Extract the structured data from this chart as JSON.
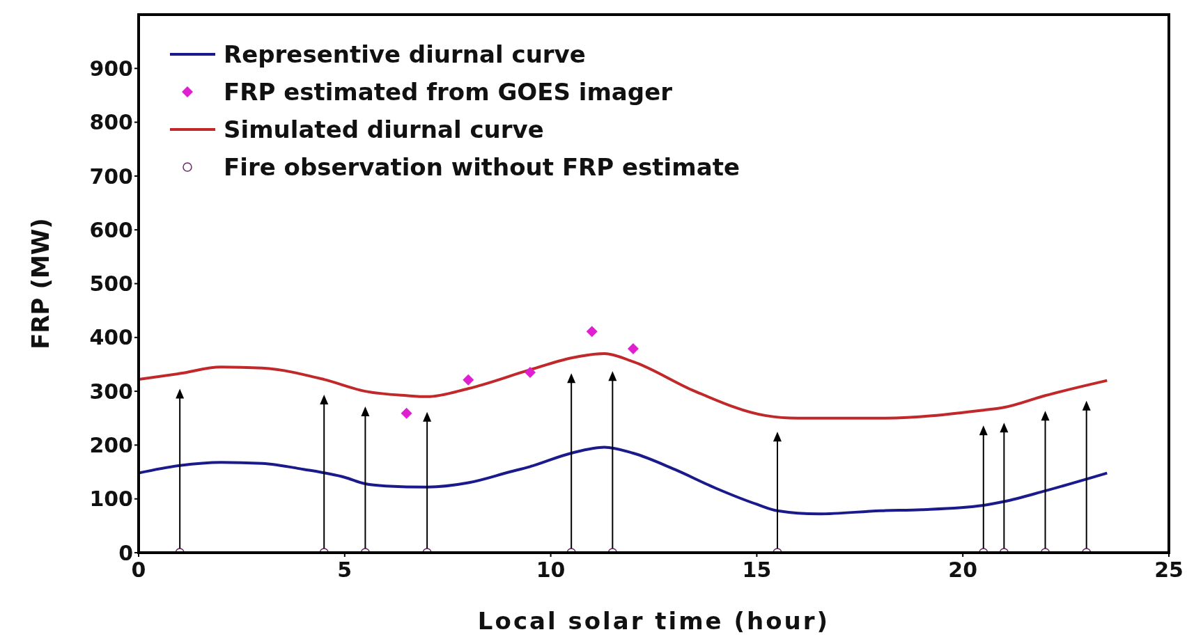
{
  "chart_data": {
    "type": "line",
    "xlabel": "Local solar time (hour)",
    "ylabel": "FRP (MW)",
    "xlim": [
      0,
      25
    ],
    "xticks": [
      0,
      5,
      10,
      15,
      20,
      25
    ],
    "ylim": [
      0,
      1000
    ],
    "yticks": [
      0,
      100,
      200,
      300,
      400,
      500,
      600,
      700,
      800,
      900
    ],
    "grid": false,
    "legend": "top left",
    "series": [
      {
        "name": "Representive diurnal curve",
        "color": "#1a1a8c",
        "marker": "none",
        "x": [
          0,
          1,
          2,
          3,
          4,
          5,
          5.5,
          6,
          7,
          8,
          9,
          9.5,
          10.5,
          11.3,
          12,
          13,
          14,
          15,
          15.5,
          16.5,
          18,
          19,
          20.5,
          21,
          22,
          23.5
        ],
        "values": [
          148,
          162,
          168,
          166,
          155,
          140,
          128,
          124,
          122,
          130,
          150,
          160,
          185,
          196,
          185,
          155,
          120,
          90,
          78,
          72,
          78,
          80,
          88,
          95,
          115,
          148
        ]
      },
      {
        "name": "FRP estimated from GOES imager",
        "type": "scatter",
        "color": "#e020d0",
        "marker": "diamond",
        "x": [
          6.5,
          8,
          9.5,
          11,
          12
        ],
        "values": [
          259,
          321,
          335,
          411,
          379
        ]
      },
      {
        "name": "Simulated diurnal curve",
        "color": "#c0282a",
        "marker": "none",
        "x": [
          0,
          1,
          2,
          3,
          4.5,
          5.5,
          6.5,
          7,
          8,
          9.5,
          10.5,
          11.3,
          12,
          13.5,
          15.2,
          16,
          18,
          20.5,
          21,
          22,
          23.5
        ],
        "values": [
          322,
          333,
          345,
          343,
          322,
          300,
          292,
          290,
          305,
          340,
          362,
          370,
          355,
          300,
          255,
          250,
          250,
          265,
          270,
          292,
          320
        ]
      },
      {
        "name": "Fire observation without FRP estimate",
        "type": "scatter",
        "color": "#6a2a6a",
        "marker": "circle",
        "x": [
          1,
          4.5,
          5.5,
          7,
          10.5,
          11.5,
          15.5,
          20.5,
          21,
          22,
          23
        ],
        "values": [
          0,
          0,
          0,
          0,
          0,
          0,
          0,
          0,
          0,
          0,
          0
        ]
      }
    ]
  }
}
